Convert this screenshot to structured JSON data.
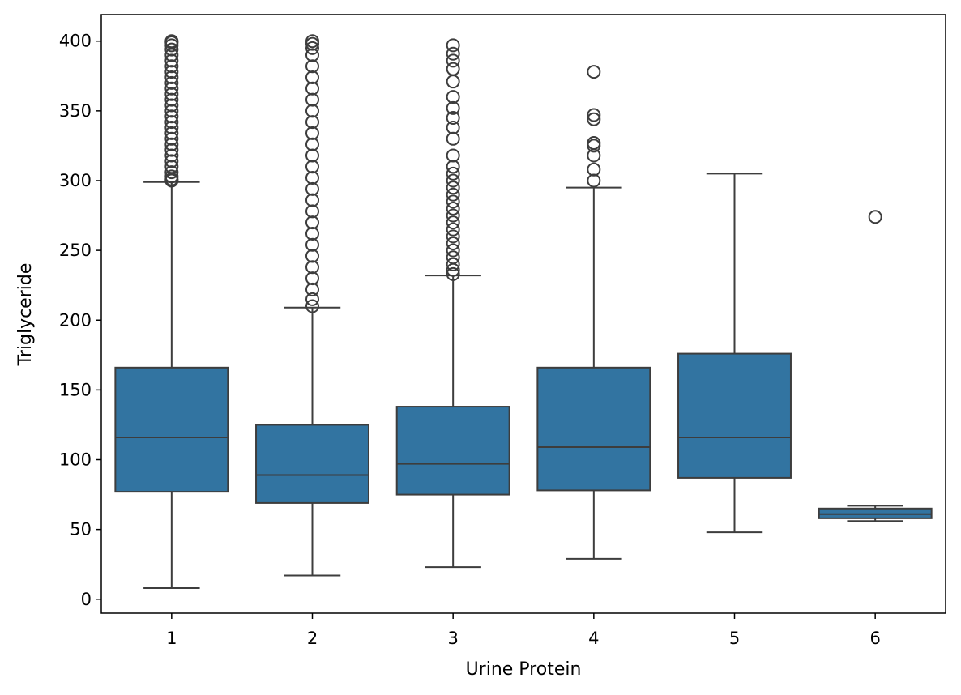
{
  "chart_data": {
    "type": "box",
    "xlabel": "Urine Protein",
    "ylabel": "Triglyceride",
    "ylim": [
      -10,
      419
    ],
    "yticks": [
      0,
      50,
      100,
      150,
      200,
      250,
      300,
      350,
      400
    ],
    "categories": [
      "1",
      "2",
      "3",
      "4",
      "5",
      "6"
    ],
    "box_color": "#3274a1",
    "line_color": "#3d3d3d",
    "boxes": [
      {
        "category": "1",
        "whislo": 8,
        "q1": 77,
        "median": 116,
        "q3": 166,
        "whishi": 299,
        "fliers": [
          300,
          301,
          303,
          306,
          310,
          314,
          318,
          322,
          326,
          330,
          334,
          338,
          342,
          346,
          350,
          354,
          358,
          362,
          366,
          370,
          374,
          378,
          382,
          386,
          390,
          394,
          397,
          399,
          400
        ]
      },
      {
        "category": "2",
        "whislo": 17,
        "q1": 69,
        "median": 89,
        "q3": 125,
        "whishi": 209,
        "fliers": [
          210,
          215,
          222,
          230,
          238,
          246,
          254,
          262,
          270,
          278,
          286,
          294,
          302,
          310,
          318,
          326,
          334,
          342,
          350,
          358,
          366,
          374,
          382,
          390,
          395,
          398,
          400
        ]
      },
      {
        "category": "3",
        "whislo": 23,
        "q1": 75,
        "median": 97,
        "q3": 138,
        "whishi": 232,
        "fliers": [
          233,
          236,
          240,
          245,
          250,
          255,
          260,
          265,
          270,
          275,
          280,
          285,
          290,
          295,
          300,
          305,
          310,
          318,
          330,
          338,
          345,
          352,
          360,
          371,
          380,
          386,
          391,
          397
        ]
      },
      {
        "category": "4",
        "whislo": 29,
        "q1": 78,
        "median": 109,
        "q3": 166,
        "whishi": 295,
        "fliers": [
          300,
          308,
          318,
          325,
          327,
          344,
          347,
          378
        ]
      },
      {
        "category": "5",
        "whislo": 48,
        "q1": 87,
        "median": 116,
        "q3": 176,
        "whishi": 305,
        "fliers": []
      },
      {
        "category": "6",
        "whislo": 56,
        "q1": 58,
        "median": 61,
        "q3": 65,
        "whishi": 67,
        "fliers": [
          274
        ]
      }
    ]
  }
}
